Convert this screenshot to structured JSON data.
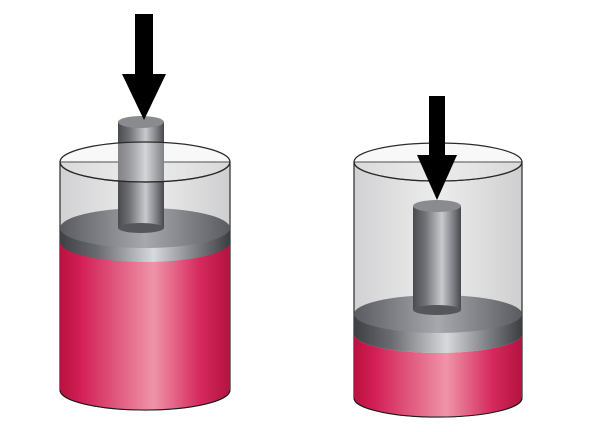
{
  "diagram": {
    "background_color": "#ffffff",
    "liquid_color": "#d81e5b",
    "piston_color": "#6e6f73",
    "glass_color": "#d9d9da",
    "arrow_color": "#000000",
    "panels": [
      {
        "name": "left-cylinder",
        "state": "piston-higher"
      },
      {
        "name": "right-cylinder",
        "state": "piston-lower"
      }
    ]
  }
}
